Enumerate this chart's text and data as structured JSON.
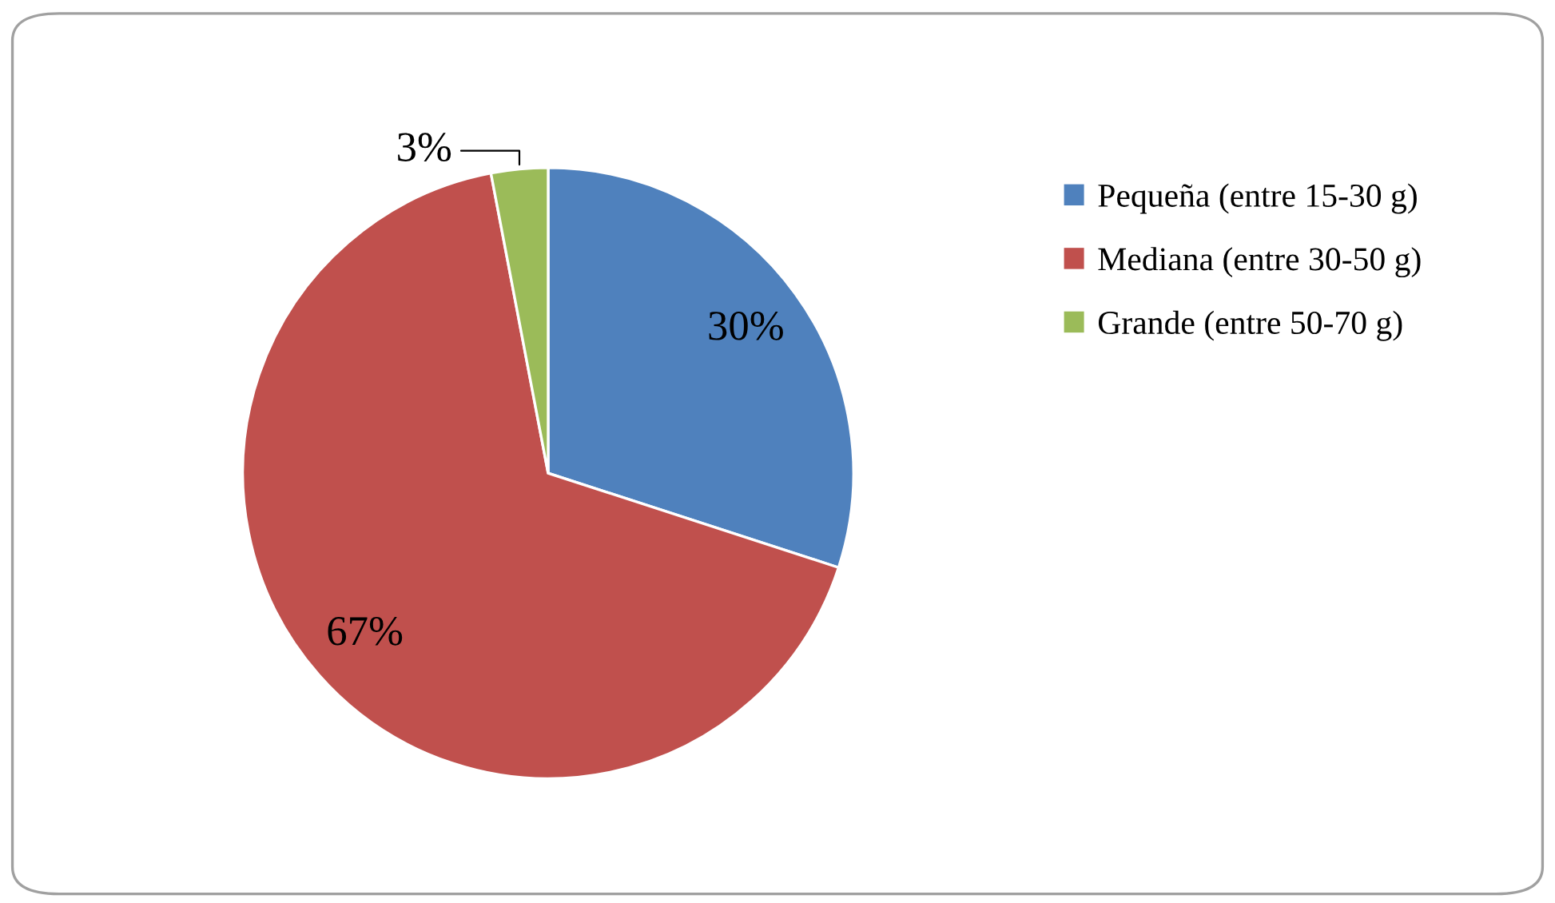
{
  "chart_data": {
    "type": "pie",
    "categories": [
      "Pequeña (entre 15-30 g)",
      "Mediana (entre 30-50 g)",
      "Grande (entre 50-70 g)"
    ],
    "values": [
      30,
      67,
      3
    ],
    "colors": [
      "#4f81bd",
      "#c0504d",
      "#9bbb59"
    ],
    "value_labels": [
      "30%",
      "67%",
      "3%"
    ],
    "legend": "right"
  }
}
